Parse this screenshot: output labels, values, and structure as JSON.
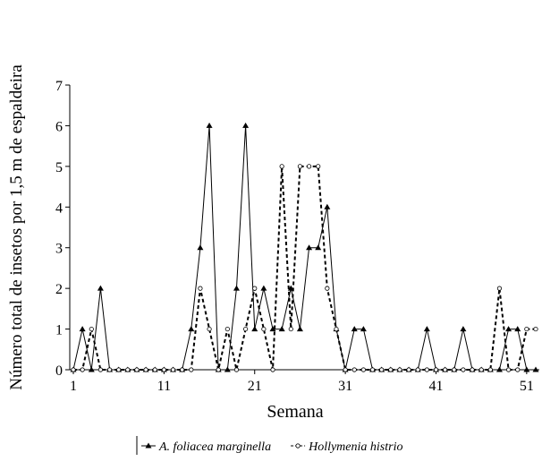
{
  "chart_data": {
    "type": "line",
    "x_label": "Semana",
    "y_label": "Número total de insetos por  1,5 m de espaldeira",
    "x": [
      1,
      2,
      3,
      4,
      5,
      6,
      7,
      8,
      9,
      10,
      11,
      12,
      13,
      14,
      15,
      16,
      17,
      18,
      19,
      20,
      21,
      22,
      23,
      24,
      25,
      26,
      27,
      28,
      29,
      30,
      31,
      32,
      33,
      34,
      35,
      36,
      37,
      38,
      39,
      40,
      41,
      42,
      43,
      44,
      45,
      46,
      47,
      48,
      49,
      50,
      51,
      52
    ],
    "series": [
      {
        "name": "A. foliacea marginella",
        "color": "#000000",
        "style": "solid",
        "marker": "triangle",
        "values": [
          0,
          1,
          0,
          2,
          0,
          0,
          0,
          0,
          0,
          0,
          0,
          0,
          0,
          1,
          3,
          6,
          0,
          0,
          2,
          6,
          1,
          2,
          1,
          1,
          2,
          1,
          3,
          3,
          4,
          1,
          0,
          1,
          1,
          0,
          0,
          0,
          0,
          0,
          0,
          1,
          0,
          0,
          0,
          1,
          0,
          0,
          0,
          0,
          1,
          1,
          0,
          0
        ]
      },
      {
        "name": "Hollymenia histrio",
        "color": "#000000",
        "style": "dashed",
        "marker": "circle",
        "values": [
          0,
          0,
          1,
          0,
          0,
          0,
          0,
          0,
          0,
          0,
          0,
          0,
          0,
          0,
          2,
          1,
          0,
          1,
          0,
          1,
          2,
          1,
          0,
          5,
          1,
          5,
          5,
          5,
          2,
          1,
          0,
          0,
          0,
          0,
          0,
          0,
          0,
          0,
          0,
          0,
          0,
          0,
          0,
          0,
          0,
          0,
          0,
          2,
          0,
          0,
          1,
          1
        ]
      }
    ],
    "xlim": [
      1,
      52
    ],
    "xticks": [
      1,
      11,
      21,
      31,
      41,
      51
    ],
    "ylim": [
      0,
      7
    ],
    "yticks": [
      0,
      1,
      2,
      3,
      4,
      5,
      6,
      7
    ],
    "legend": "bottom"
  }
}
